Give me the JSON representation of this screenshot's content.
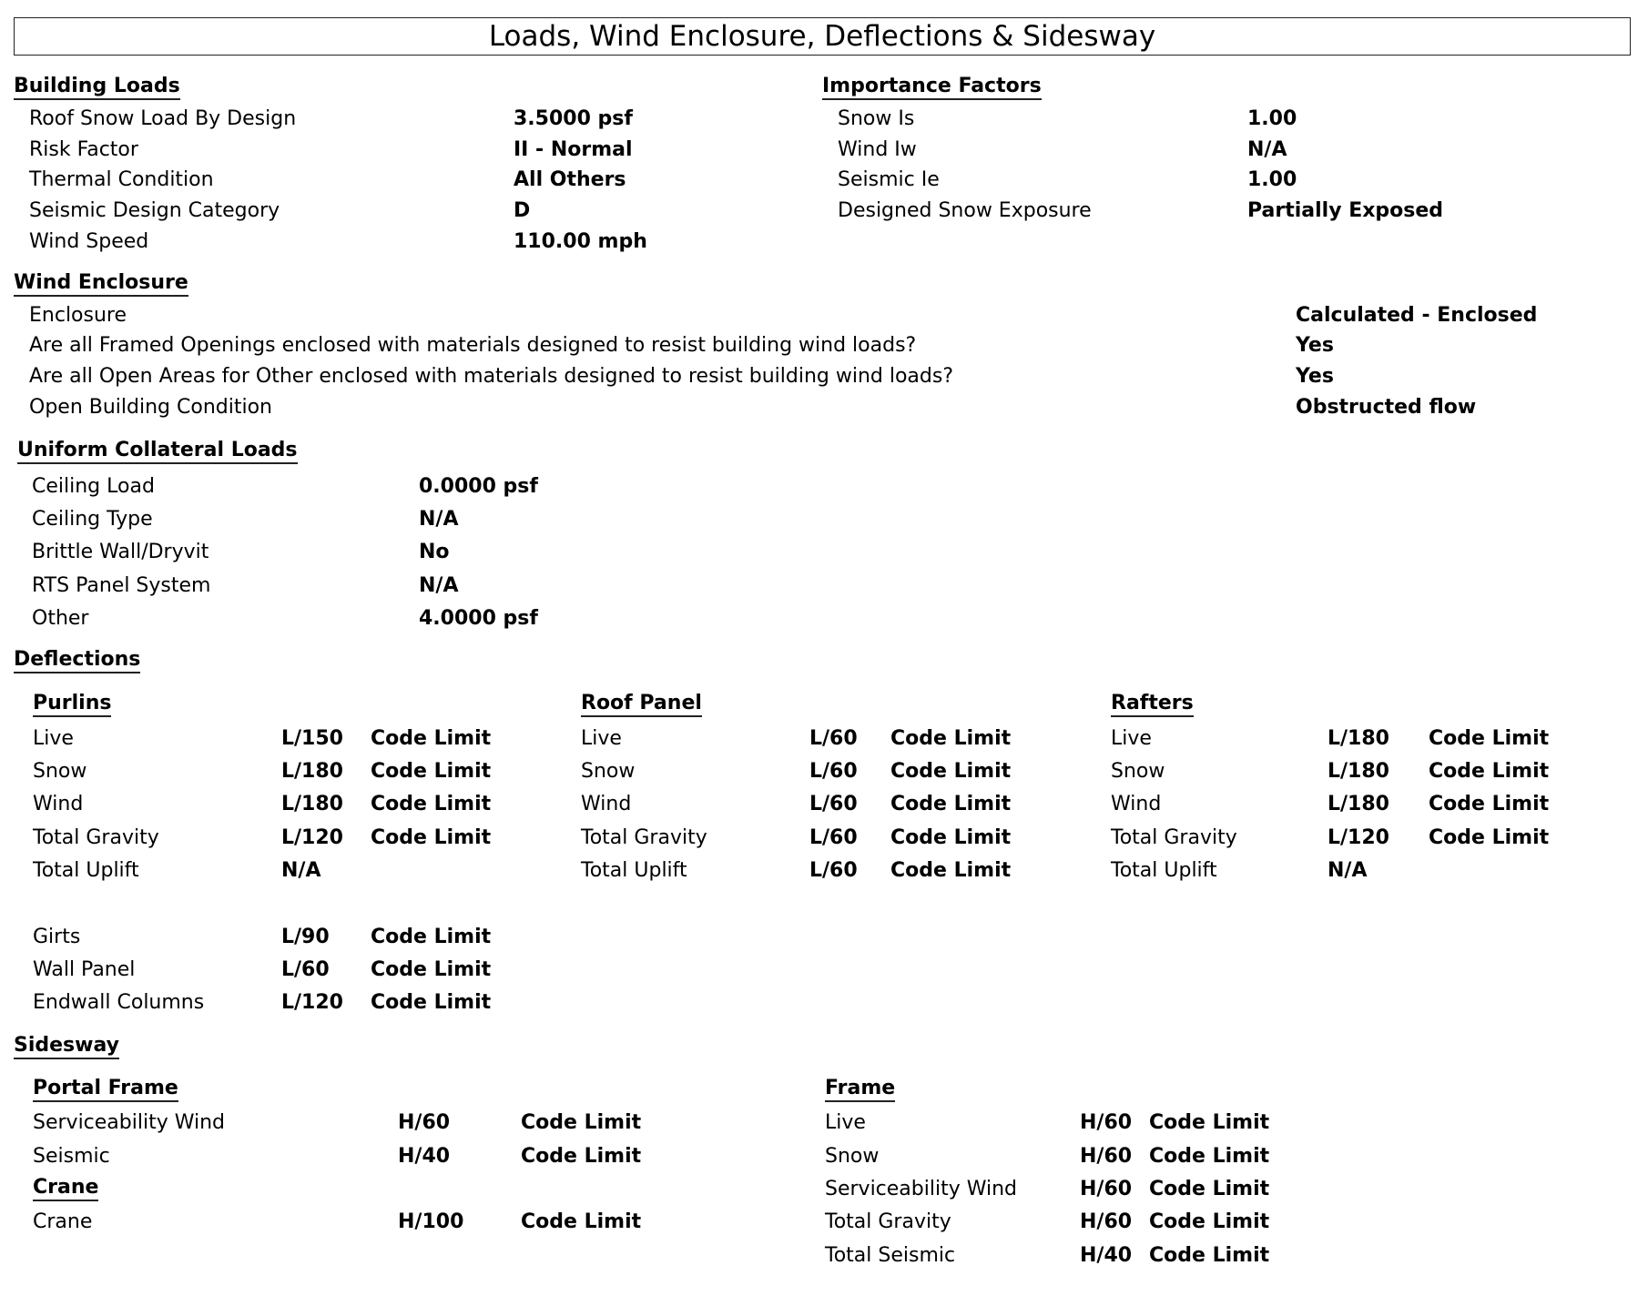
{
  "title": "Loads, Wind Enclosure, Deflections & Sidesway",
  "building_loads": {
    "heading": "Building Loads",
    "rows": [
      {
        "label": "Roof Snow Load By Design",
        "value": "3.5000 psf"
      },
      {
        "label": "Risk Factor",
        "value": "II - Normal"
      },
      {
        "label": "Thermal Condition",
        "value": "All Others"
      },
      {
        "label": "Seismic Design Category",
        "value": "D"
      },
      {
        "label": "Wind Speed",
        "value": "110.00 mph"
      }
    ]
  },
  "importance_factors": {
    "heading": "Importance Factors",
    "rows": [
      {
        "label": "Snow Is",
        "value": "1.00"
      },
      {
        "label": "Wind Iw",
        "value": "N/A"
      },
      {
        "label": "Seismic Ie",
        "value": "1.00"
      },
      {
        "label": "Designed Snow Exposure",
        "value": "Partially Exposed"
      }
    ]
  },
  "wind_enclosure": {
    "heading": "Wind Enclosure",
    "rows": [
      {
        "label": "Enclosure",
        "value": "Calculated - Enclosed"
      },
      {
        "label": "Are all Framed Openings enclosed with materials designed to resist building wind loads?",
        "value": "Yes"
      },
      {
        "label": "Are all Open Areas for Other enclosed with materials designed to resist building wind loads?",
        "value": "Yes"
      },
      {
        "label": "Open Building Condition",
        "value": "Obstructed flow"
      }
    ]
  },
  "collateral_loads": {
    "heading": "Uniform Collateral Loads",
    "rows": [
      {
        "label": "Ceiling Load",
        "value": "0.0000 psf"
      },
      {
        "label": "Ceiling Type",
        "value": "N/A"
      },
      {
        "label": "Brittle Wall/Dryvit",
        "value": "No"
      },
      {
        "label": "RTS Panel System",
        "value": "N/A"
      },
      {
        "label": "Other",
        "value": "4.0000 psf"
      }
    ]
  },
  "deflections": {
    "heading": "Deflections",
    "groups": [
      {
        "heading": "Purlins",
        "rows": [
          {
            "label": "Live",
            "value": "L/150",
            "limit": "Code Limit"
          },
          {
            "label": "Snow",
            "value": "L/180",
            "limit": "Code Limit"
          },
          {
            "label": "Wind",
            "value": "L/180",
            "limit": "Code Limit"
          },
          {
            "label": "Total Gravity",
            "value": "L/120",
            "limit": "Code Limit"
          },
          {
            "label": "Total Uplift",
            "value": "N/A",
            "limit": ""
          }
        ]
      },
      {
        "heading": "Roof Panel",
        "rows": [
          {
            "label": "Live",
            "value": "L/60",
            "limit": "Code Limit"
          },
          {
            "label": "Snow",
            "value": "L/60",
            "limit": "Code Limit"
          },
          {
            "label": "Wind",
            "value": "L/60",
            "limit": "Code Limit"
          },
          {
            "label": "Total Gravity",
            "value": "L/60",
            "limit": "Code Limit"
          },
          {
            "label": "Total Uplift",
            "value": "L/60",
            "limit": "Code Limit"
          }
        ]
      },
      {
        "heading": "Rafters",
        "rows": [
          {
            "label": "Live",
            "value": "L/180",
            "limit": "Code Limit"
          },
          {
            "label": "Snow",
            "value": "L/180",
            "limit": "Code Limit"
          },
          {
            "label": "Wind",
            "value": "L/180",
            "limit": "Code Limit"
          },
          {
            "label": "Total Gravity",
            "value": "L/120",
            "limit": "Code Limit"
          },
          {
            "label": "Total Uplift",
            "value": "N/A",
            "limit": ""
          }
        ]
      }
    ],
    "wall_rows": [
      {
        "label": "Girts",
        "value": "L/90",
        "limit": "Code Limit"
      },
      {
        "label": "Wall Panel",
        "value": "L/60",
        "limit": "Code Limit"
      },
      {
        "label": "Endwall Columns",
        "value": "L/120",
        "limit": "Code Limit"
      }
    ]
  },
  "sidesway": {
    "heading": "Sidesway",
    "portal_frame": {
      "heading": "Portal Frame",
      "rows": [
        {
          "label": "Serviceability Wind",
          "value": "H/60",
          "limit": "Code Limit"
        },
        {
          "label": "Seismic",
          "value": "H/40",
          "limit": "Code Limit"
        }
      ]
    },
    "crane": {
      "heading": "Crane",
      "rows": [
        {
          "label": "Crane",
          "value": "H/100",
          "limit": "Code Limit"
        }
      ]
    },
    "frame": {
      "heading": "Frame",
      "rows": [
        {
          "label": "Live",
          "value": "H/60",
          "limit": "Code Limit"
        },
        {
          "label": "Snow",
          "value": "H/60",
          "limit": "Code Limit"
        },
        {
          "label": "Serviceability Wind",
          "value": "H/60",
          "limit": "Code Limit"
        },
        {
          "label": "Total Gravity",
          "value": "H/60",
          "limit": "Code Limit"
        },
        {
          "label": "Total Seismic",
          "value": "H/40",
          "limit": "Code Limit"
        }
      ]
    }
  }
}
